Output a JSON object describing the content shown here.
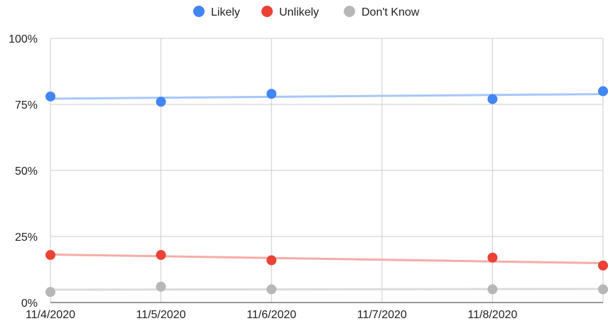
{
  "chart_data": {
    "type": "scatter",
    "title": "",
    "xlabel": "",
    "ylabel": "",
    "x_ticks": [
      "11/4/2020",
      "11/5/2020",
      "11/6/2020",
      "11/7/2020",
      "11/8/2020"
    ],
    "x": [
      "11/4/2020",
      "11/5/2020",
      "11/6/2020",
      "11/8/2020",
      "11/9/2020"
    ],
    "xlim": [
      "11/4/2020",
      "11/9/2020"
    ],
    "y_ticks": [
      "0%",
      "25%",
      "50%",
      "75%",
      "100%"
    ],
    "ylim": [
      0,
      100
    ],
    "y_unit": "%",
    "grid": true,
    "legend_position": "top",
    "trendlines": "linear",
    "series": [
      {
        "name": "Likely",
        "color": "#4285f4",
        "trend_color": "#a7c7fa",
        "values": [
          78,
          76,
          79,
          77,
          80
        ]
      },
      {
        "name": "Unlikely",
        "color": "#ea4335",
        "trend_color": "#f4ada6",
        "values": [
          18,
          18,
          16,
          17,
          14
        ]
      },
      {
        "name": "Don't Know",
        "color": "#b7b7b7",
        "trend_color": "#dcdcdc",
        "values": [
          4,
          6,
          5,
          5,
          5
        ]
      }
    ]
  }
}
